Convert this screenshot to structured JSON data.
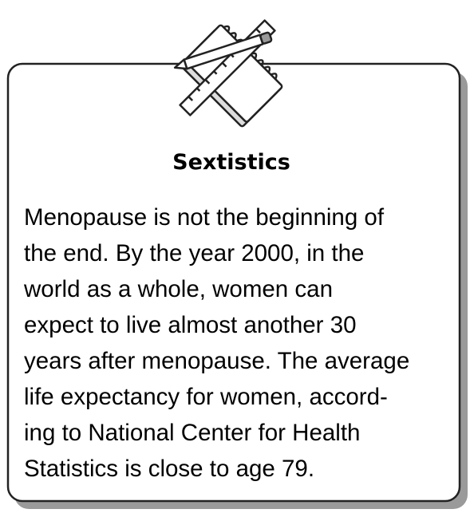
{
  "title": "Sextistics",
  "body_lines": [
    "Menopause is not the beginning of",
    "the end. By the year 2000, in the",
    "world as a whole, women can",
    "expect to live almost another 30",
    "years after menopause. The average",
    "life expectancy for women, accord-",
    "ing to National Center for Health",
    "Statistics is close to age 79."
  ]
}
